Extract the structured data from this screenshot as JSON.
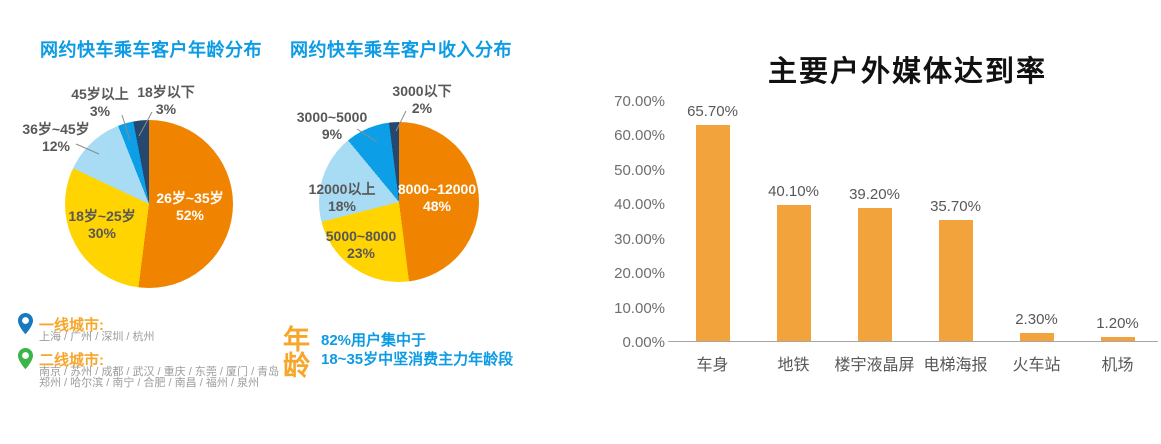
{
  "colors": {
    "accent_blue": "#0D9BE4",
    "accent_orange": "#F7A52B",
    "pie_orange": "#F08300",
    "pie_yellow": "#FFD400",
    "pie_lightblue": "#A8DCF4",
    "pie_blue": "#0C9FE8",
    "pie_navy": "#27486E",
    "bar_orange": "#F2A33C",
    "pin_blue": "#1879BD",
    "pin_green": "#3BB54A",
    "text_dark": "#595757",
    "text_gray": "#9C9C9C",
    "axis_gray": "#A6A6A6"
  },
  "chart_data": [
    {
      "type": "pie",
      "title": "网约快车乘车客户年龄分布",
      "legend_position": "labels-on-chart",
      "slices": [
        {
          "label": "26岁~35岁",
          "pct": "52%",
          "value": 52,
          "color": "#F08300"
        },
        {
          "label": "18岁~25岁",
          "pct": "30%",
          "value": 30,
          "color": "#FFD400"
        },
        {
          "label": "36岁~45岁",
          "pct": "12%",
          "value": 12,
          "color": "#A8DCF4"
        },
        {
          "label": "45岁以上",
          "pct": "3%",
          "value": 3,
          "color": "#0C9FE8"
        },
        {
          "label": "18岁以下",
          "pct": "3%",
          "value": 3,
          "color": "#27486E"
        }
      ]
    },
    {
      "type": "pie",
      "title": "网约快车乘车客户收入分布",
      "legend_position": "labels-on-chart",
      "slices": [
        {
          "label": "8000~12000",
          "pct": "48%",
          "value": 48,
          "color": "#F08300"
        },
        {
          "label": "5000~8000",
          "pct": "23%",
          "value": 23,
          "color": "#FFD400"
        },
        {
          "label": "12000以上",
          "pct": "18%",
          "value": 18,
          "color": "#A8DCF4"
        },
        {
          "label": "3000~5000",
          "pct": "9%",
          "value": 9,
          "color": "#0C9FE8"
        },
        {
          "label": "3000以下",
          "pct": "2%",
          "value": 2,
          "color": "#27486E"
        }
      ]
    },
    {
      "type": "bar",
      "title": "主要户外媒体达到率",
      "categories": [
        "车身",
        "地铁",
        "楼宇液晶屏",
        "电梯海报",
        "火车站",
        "机场"
      ],
      "values": [
        65.7,
        40.1,
        39.2,
        35.7,
        2.3,
        1.2
      ],
      "value_labels": [
        "65.70%",
        "40.10%",
        "39.20%",
        "35.70%",
        "2.30%",
        "1.20%"
      ],
      "yticks": [
        "70.00%",
        "60.00%",
        "50.00%",
        "40.00%",
        "30.00%",
        "20.00%",
        "10.00%",
        "0.00%"
      ],
      "ylim": [
        0,
        70
      ],
      "ylabel": "",
      "xlabel": "",
      "grid": false,
      "legend": "none",
      "bar_color": "#F2A33C"
    }
  ],
  "legend": {
    "tier1": {
      "heading": "一线城市:",
      "cities": "上海 / 广州 / 深圳 / 杭州"
    },
    "tier2": {
      "heading": "二线城市:",
      "cities_line1": "南京 / 苏州 / 成都 / 武汉 / 重庆 / 东莞 / 厦门 / 青岛",
      "cities_line2": "郑州 / 哈尔滨 / 南宁 / 合肥 / 南昌 / 福州 / 泉州"
    }
  },
  "age_note": {
    "keyword": "年龄",
    "line1": "82%用户集中于",
    "line2": "18~35岁中坚消费主力年龄段"
  }
}
